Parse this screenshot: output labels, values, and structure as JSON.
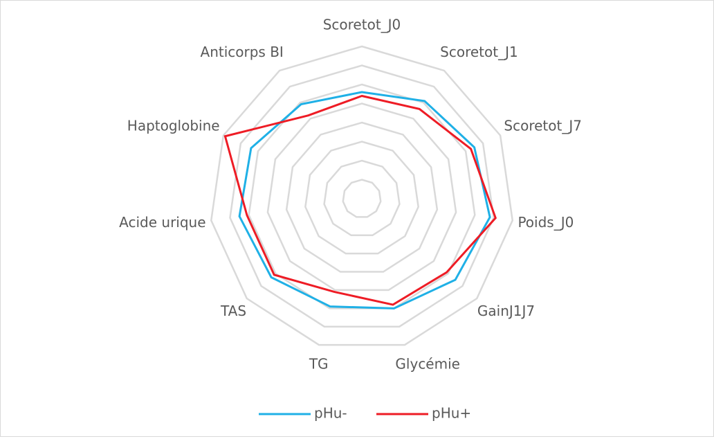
{
  "chart_data": {
    "type": "radar",
    "categories": [
      "Scoretot_J0",
      "Scoretot_J1",
      "Scoretot_J7",
      "Poids_J0",
      "GainJ1J7",
      "Glycémie",
      "TG",
      "TAS",
      "Acide urique",
      "Haptoglobine",
      "Anticorps BI"
    ],
    "series": [
      {
        "name": "pHu-",
        "color": "#1fb0e6",
        "values": [
          5.6,
          6.1,
          6.5,
          6.8,
          6.5,
          6.0,
          5.9,
          6.3,
          6.5,
          6.4,
          5.9
        ]
      },
      {
        "name": "pHu+",
        "color": "#ee1c25",
        "values": [
          5.4,
          5.6,
          6.3,
          7.1,
          5.9,
          5.8,
          5.1,
          6.1,
          6.1,
          7.9,
          5.2
        ]
      }
    ],
    "ylim": [
      0,
      8
    ],
    "yticks": [
      1,
      2,
      3,
      4,
      5,
      6,
      7,
      8
    ],
    "grid": true,
    "legend": "bottom"
  }
}
